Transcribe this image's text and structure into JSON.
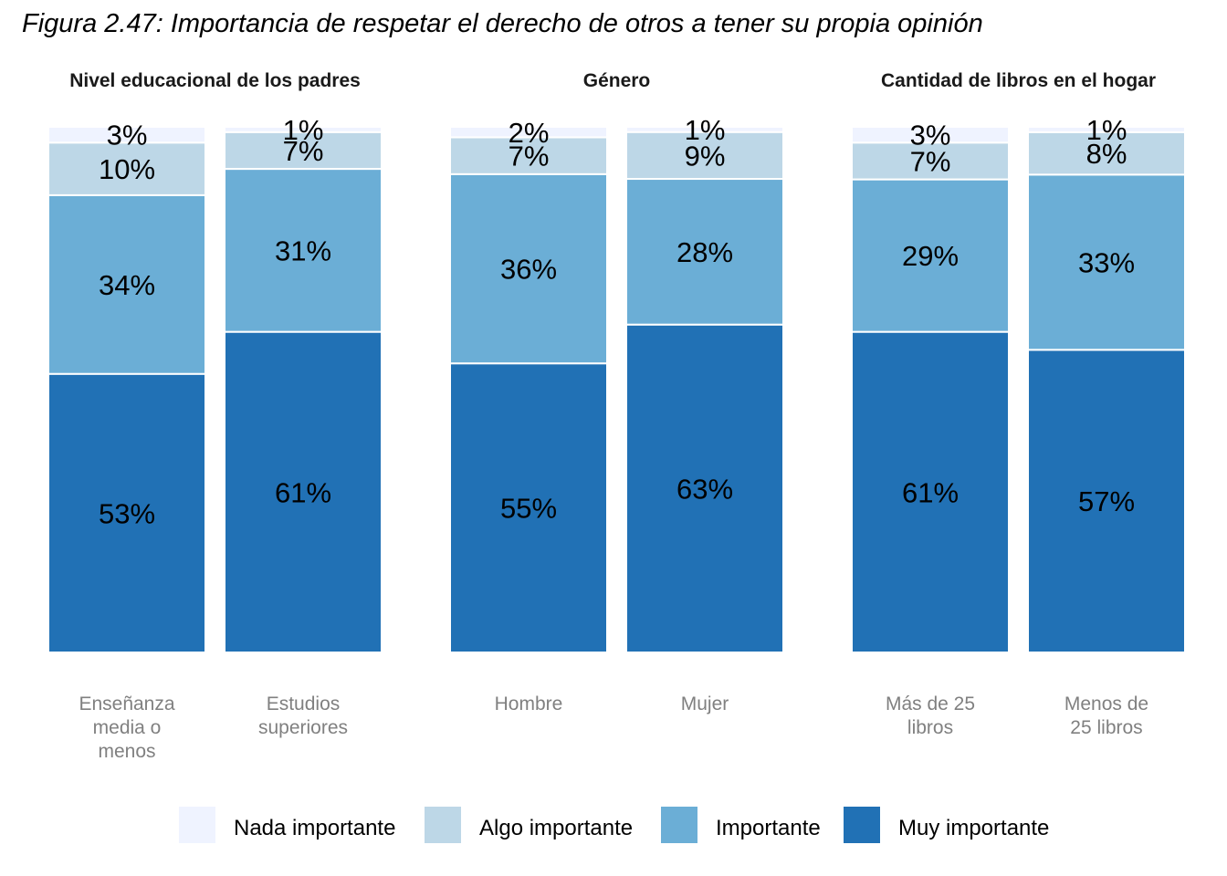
{
  "title": "Figura 2.47: Importancia de respetar el derecho de otros a tener su propia opinión",
  "chart_data": {
    "type": "bar",
    "stacked": true,
    "legend_position": "bottom",
    "grid": false,
    "ylim": [
      0,
      100
    ],
    "series_names": [
      "Nada importante",
      "Algo importante",
      "Importante",
      "Muy importante"
    ],
    "colors": [
      "#eff3ff",
      "#bdd7e7",
      "#6baed6",
      "#2171b5"
    ],
    "panels": [
      {
        "title": "Nivel educacional de los padres",
        "bars": [
          {
            "category": [
              "Enseñanza",
              "media o",
              "menos"
            ],
            "values": [
              3,
              10,
              34,
              53
            ],
            "labels": [
              "3%",
              "10%",
              "34%",
              "53%"
            ]
          },
          {
            "category": [
              "Estudios",
              "superiores"
            ],
            "values": [
              1,
              7,
              31,
              61
            ],
            "labels": [
              "1%",
              "7%",
              "31%",
              "61%"
            ]
          }
        ]
      },
      {
        "title": "Género",
        "bars": [
          {
            "category": [
              "Hombre"
            ],
            "values": [
              2,
              7,
              36,
              55
            ],
            "labels": [
              "2%",
              "7%",
              "36%",
              "55%"
            ]
          },
          {
            "category": [
              "Mujer"
            ],
            "values": [
              1,
              9,
              28,
              63
            ],
            "labels": [
              "1%",
              "9%",
              "28%",
              "63%"
            ]
          }
        ]
      },
      {
        "title": "Cantidad de libros en el hogar",
        "bars": [
          {
            "category": [
              "Más de 25",
              "libros"
            ],
            "values": [
              3,
              7,
              29,
              61
            ],
            "labels": [
              "3%",
              "7%",
              "29%",
              "61%"
            ]
          },
          {
            "category": [
              "Menos de",
              "25 libros"
            ],
            "values": [
              1,
              8,
              33,
              57
            ],
            "labels": [
              "1%",
              "8%",
              "33%",
              "57%"
            ]
          }
        ]
      }
    ]
  }
}
